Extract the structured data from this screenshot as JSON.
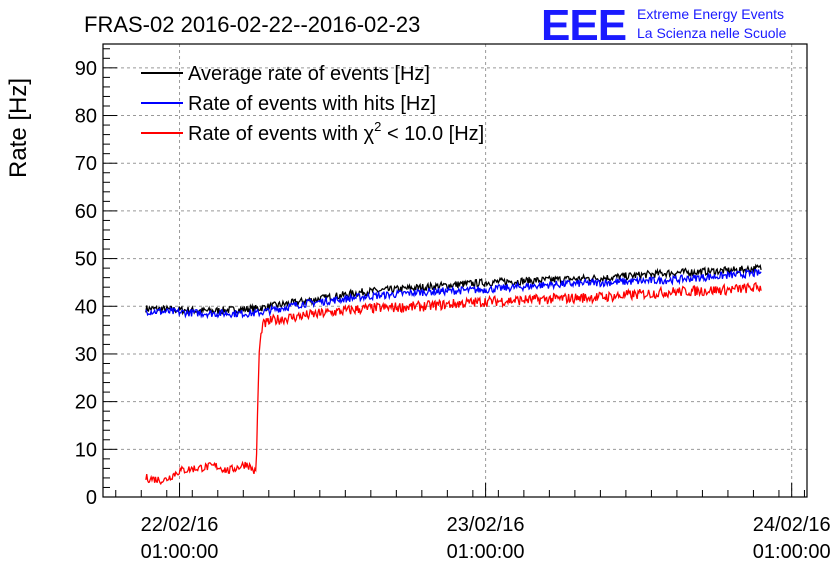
{
  "logo": {
    "mark": "EEE",
    "line1": "Extreme Energy Events",
    "line2": "La Scienza nelle Scuole",
    "color": "#1a1aff"
  },
  "chart_data": {
    "type": "line",
    "title": "FRAS-02 2016-02-22--2016-02-23",
    "ylabel": "Rate [Hz]",
    "xlabel": "",
    "ylim": [
      0,
      95
    ],
    "xlim": [
      -0.25,
      2.05
    ],
    "grid": true,
    "yticks": [
      0,
      10,
      20,
      30,
      40,
      50,
      60,
      70,
      80,
      90
    ],
    "xticks": [
      {
        "x": 0,
        "date": "22/02/16",
        "time": "01:00:00"
      },
      {
        "x": 1,
        "date": "23/02/16",
        "time": "01:00:00"
      },
      {
        "x": 2,
        "date": "24/02/16",
        "time": "01:00:00"
      }
    ],
    "x_units": "days since 22/02/16 01:00:00",
    "legend_position": "top-left",
    "series": [
      {
        "name": "Average rate of events [Hz]",
        "color": "#000000",
        "x": [
          -0.11,
          0.1,
          0.25,
          0.4,
          0.6,
          0.8,
          1.0,
          1.2,
          1.4,
          1.6,
          1.8,
          1.9
        ],
        "values": [
          39.5,
          39.0,
          39.5,
          41.0,
          43.0,
          44.0,
          45.0,
          45.5,
          46.0,
          47.0,
          47.5,
          48.0
        ]
      },
      {
        "name": "Rate of events with hits [Hz]",
        "color": "#0000ff",
        "x": [
          -0.11,
          0.1,
          0.25,
          0.4,
          0.6,
          0.8,
          1.0,
          1.2,
          1.4,
          1.6,
          1.8,
          1.9
        ],
        "values": [
          39.0,
          38.5,
          38.5,
          40.5,
          42.0,
          43.0,
          43.5,
          44.5,
          45.0,
          45.5,
          46.5,
          47.0
        ]
      },
      {
        "name_prefix": "Rate of events with ",
        "name_chi": "χ",
        "name_sup": "2",
        "name_suffix": " < 10.0 [Hz]",
        "color": "#ff0000",
        "x": [
          -0.11,
          -0.05,
          0.0,
          0.05,
          0.12,
          0.16,
          0.22,
          0.25,
          0.26,
          0.27,
          0.3,
          0.4,
          0.6,
          0.8,
          1.0,
          1.2,
          1.4,
          1.6,
          1.8,
          1.9
        ],
        "values": [
          4.0,
          3.5,
          5.5,
          6.0,
          6.5,
          5.5,
          7.0,
          5.0,
          30.0,
          36.0,
          37.0,
          38.0,
          39.5,
          40.0,
          41.0,
          41.5,
          42.0,
          43.0,
          43.5,
          44.0
        ]
      }
    ]
  }
}
